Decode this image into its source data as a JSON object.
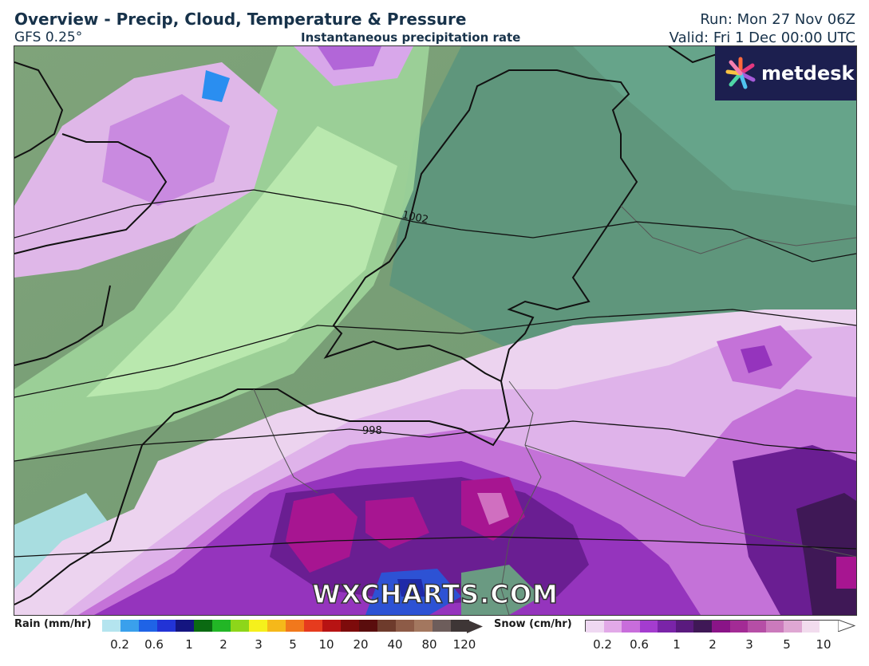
{
  "header": {
    "title": "Overview - Precip, Cloud, Temperature & Pressure",
    "model": "GFS 0.25°",
    "subtitle": "Instantaneous precipitation rate",
    "run": "Run: Mon 27 Nov 06Z",
    "valid": "Valid: Fri 1 Dec 00:00 UTC"
  },
  "brand": {
    "logo_text": "metdesk",
    "watermark": "WXCHARTS.COM"
  },
  "isobars": [
    "1002",
    "998"
  ],
  "legend": {
    "rain": {
      "label": "Rain (mm/hr)",
      "colors": [
        "#b4e4ef",
        "#3aa0ec",
        "#1f63e6",
        "#2233d6",
        "#141580",
        "#0b6a12",
        "#22b626",
        "#8dd61a",
        "#f5f01c",
        "#f5b81a",
        "#f1781c",
        "#e63b1e",
        "#b71313",
        "#7d0b0b",
        "#5a0d0d",
        "#6e3b2c",
        "#8d5b47",
        "#a3775f",
        "#6d5d5b",
        "#3e3636"
      ],
      "ticks": [
        "0.2",
        "0.6",
        "1",
        "2",
        "3",
        "5",
        "10",
        "20",
        "40",
        "80",
        "120"
      ]
    },
    "snow": {
      "label": "Snow (cm/hr)",
      "colors": [
        "#efd8f2",
        "#e2a9e8",
        "#c86ddb",
        "#a43ccf",
        "#7a24a8",
        "#5a1a7e",
        "#3f1856",
        "#8a1487",
        "#a32b95",
        "#b64ea6",
        "#cb7abc",
        "#dfa7d3",
        "#f2dcee",
        "#ffffff"
      ],
      "ticks": [
        "0.2",
        "0.6",
        "1",
        "2",
        "3",
        "5",
        "10"
      ]
    }
  }
}
